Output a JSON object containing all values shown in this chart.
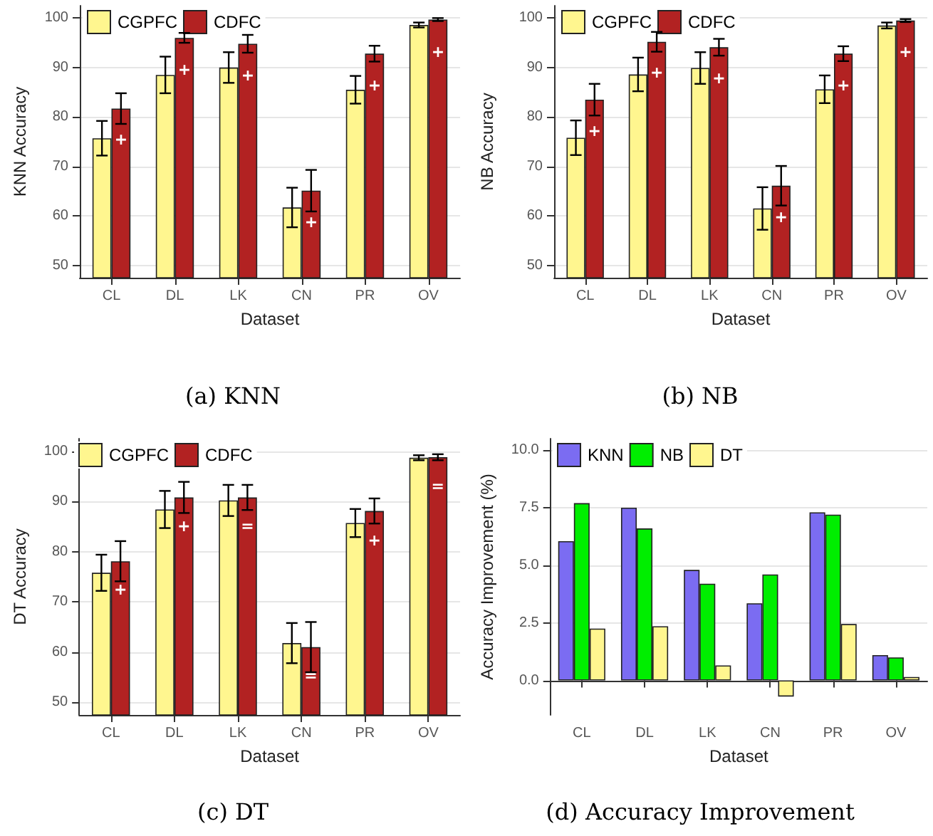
{
  "chart_data": [
    {
      "type": "bar",
      "title": "(a) KNN",
      "xlabel": "Dataset",
      "ylabel": "KNN Accuracy",
      "categories": [
        "CL",
        "DL",
        "LK",
        "CN",
        "PR",
        "OV"
      ],
      "series": [
        {
          "name": "CGPFC",
          "color": "#fff68f",
          "values": [
            75.7,
            88.5,
            90.0,
            61.7,
            85.5,
            98.6
          ],
          "errors": [
            3.5,
            3.7,
            3.1,
            4.0,
            2.8,
            0.5
          ]
        },
        {
          "name": "CDFC",
          "color": "#b22222",
          "values": [
            81.7,
            96.0,
            94.8,
            65.1,
            92.8,
            99.7
          ],
          "errors": [
            3.1,
            1.0,
            1.8,
            4.2,
            1.6,
            0.3
          ]
        }
      ],
      "annotations": [
        {
          "text": "+",
          "x": "CL",
          "y": 75.5
        },
        {
          "text": "+",
          "x": "DL",
          "y": 89.5
        },
        {
          "text": "+",
          "x": "LK",
          "y": 88.4
        },
        {
          "text": "+",
          "x": "CN",
          "y": 58.7
        },
        {
          "text": "+",
          "x": "PR",
          "y": 86.4
        },
        {
          "text": "+",
          "x": "OV",
          "y": 93.2
        }
      ],
      "ylim": [
        47.5,
        102.5
      ],
      "yticks": [
        50,
        60,
        70,
        80,
        90,
        100
      ],
      "grid": "y",
      "legend": "top left"
    },
    {
      "type": "bar",
      "title": "(b) NB",
      "xlabel": "Dataset",
      "ylabel": "NB Accuracy",
      "categories": [
        "CL",
        "DL",
        "LK",
        "CN",
        "PR",
        "OV"
      ],
      "series": [
        {
          "name": "CGPFC",
          "color": "#fff68f",
          "values": [
            75.8,
            88.6,
            89.9,
            61.5,
            85.6,
            98.5
          ],
          "errors": [
            3.5,
            3.4,
            3.2,
            4.3,
            2.8,
            0.6
          ]
        },
        {
          "name": "CDFC",
          "color": "#b22222",
          "values": [
            83.5,
            95.2,
            94.1,
            66.1,
            92.8,
            99.5
          ],
          "errors": [
            3.2,
            2.0,
            1.7,
            4.0,
            1.5,
            0.3
          ]
        }
      ],
      "annotations": [
        {
          "text": "+",
          "x": "CL",
          "y": 77.2
        },
        {
          "text": "+",
          "x": "DL",
          "y": 89.0
        },
        {
          "text": "+",
          "x": "LK",
          "y": 87.8
        },
        {
          "text": "+",
          "x": "CN",
          "y": 59.8
        },
        {
          "text": "+",
          "x": "PR",
          "y": 86.4
        },
        {
          "text": "+",
          "x": "OV",
          "y": 93.2
        }
      ],
      "ylim": [
        47.5,
        102.5
      ],
      "yticks": [
        50,
        60,
        70,
        80,
        90,
        100
      ],
      "grid": "y",
      "legend": "top left"
    },
    {
      "type": "bar",
      "title": "(c) DT",
      "xlabel": "Dataset",
      "ylabel": "DT Accuracy",
      "categories": [
        "CL",
        "DL",
        "LK",
        "CN",
        "PR",
        "OV"
      ],
      "series": [
        {
          "name": "CGPFC",
          "color": "#fff68f",
          "values": [
            75.8,
            88.4,
            90.2,
            61.8,
            85.7,
            98.7
          ],
          "errors": [
            3.6,
            3.7,
            3.1,
            4.0,
            2.8,
            0.5
          ]
        },
        {
          "name": "CDFC",
          "color": "#b22222",
          "values": [
            78.1,
            90.8,
            90.8,
            61.0,
            88.1,
            98.8
          ],
          "errors": [
            4.0,
            3.1,
            2.5,
            5.0,
            2.5,
            0.6
          ]
        }
      ],
      "annotations": [
        {
          "text": "+",
          "x": "CL",
          "y": 72.4
        },
        {
          "text": "+",
          "x": "DL",
          "y": 85.0
        },
        {
          "text": "=",
          "x": "LK",
          "y": 85.0
        },
        {
          "text": "=",
          "x": "CN",
          "y": 55.3
        },
        {
          "text": "+",
          "x": "PR",
          "y": 82.3
        },
        {
          "text": "=",
          "x": "OV",
          "y": 93.0
        }
      ],
      "ylim": [
        47.5,
        102.5
      ],
      "yticks": [
        50,
        60,
        70,
        80,
        90,
        100
      ],
      "grid": "y",
      "legend": "top left"
    },
    {
      "type": "bar",
      "title": "(d) Accuracy Improvement",
      "xlabel": "Dataset",
      "ylabel": "Accuracy Improvement (%)",
      "categories": [
        "CL",
        "DL",
        "LK",
        "CN",
        "PR",
        "OV"
      ],
      "series": [
        {
          "name": "KNN",
          "color": "#7b6cf2",
          "values": [
            6.05,
            7.5,
            4.8,
            3.35,
            7.3,
            1.1
          ]
        },
        {
          "name": "NB",
          "color": "#00ee00",
          "values": [
            7.7,
            6.6,
            4.2,
            4.6,
            7.2,
            1.0
          ]
        },
        {
          "name": "DT",
          "color": "#fff68f",
          "values": [
            2.25,
            2.35,
            0.65,
            -0.7,
            2.45,
            0.15
          ]
        }
      ],
      "ylim": [
        -1.5,
        10.5
      ],
      "yticks": [
        {
          "value": 0,
          "label": "0.0"
        },
        2.5,
        {
          "value": 5,
          "label": "5.0"
        },
        7.5,
        {
          "value": 10,
          "label": "10.0"
        }
      ],
      "grid": "y",
      "legend": "top left"
    }
  ]
}
